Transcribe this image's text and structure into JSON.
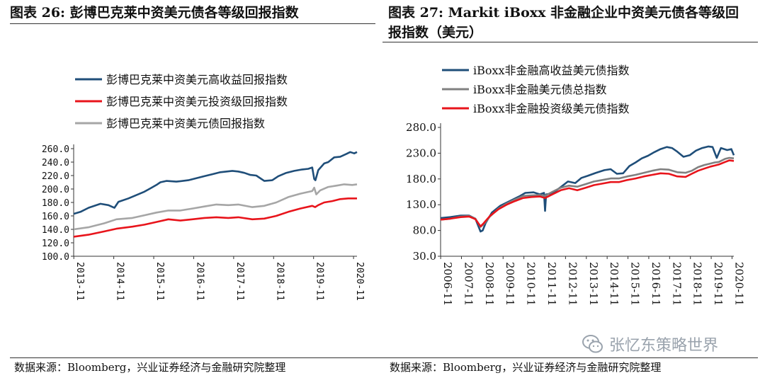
{
  "titles": {
    "left": "图表 26:  彭博巴克莱中资美元债各等级回报指数",
    "right": "图表 27:  Markit iBoxx 非金融企业中资美元债各等级回报指数（美元）"
  },
  "sources": {
    "left": "数据来源：Bloomberg，兴业证券经济与金融研究院整理",
    "right": "数据来源：Bloomberg，兴业证券经济与金融研究院整理"
  },
  "watermark": {
    "text": "张忆东策略世界",
    "icon": "wechat-icon"
  },
  "colors": {
    "navy": "#1f4e79",
    "red": "#e8141b",
    "gray": "#a6a6a6"
  },
  "chart_data": [
    {
      "type": "line",
      "title": "",
      "xlabel": "",
      "ylabel": "",
      "x_ticks": [
        "2013-11",
        "2014-11",
        "2015-11",
        "2016-11",
        "2017-11",
        "2018-11",
        "2019-11",
        "2020-11"
      ],
      "y_ticks": [
        "100.0",
        "120.0",
        "140.0",
        "160.0",
        "180.0",
        "200.0",
        "220.0",
        "240.0",
        "260.0"
      ],
      "ylim": [
        100,
        260
      ],
      "xlim": [
        2013.83,
        2020.92
      ],
      "grid": false,
      "legend_position": "top-left",
      "series": [
        {
          "name": "彭博巴克莱中资美元高收益回报指数",
          "color": "#1f4e79",
          "x": [
            2013.83,
            2014.0,
            2014.2,
            2014.5,
            2014.7,
            2014.85,
            2014.95,
            2015.2,
            2015.4,
            2015.6,
            2015.75,
            2015.9,
            2016.0,
            2016.15,
            2016.4,
            2016.7,
            2016.9,
            2017.1,
            2017.3,
            2017.5,
            2017.8,
            2017.95,
            2018.1,
            2018.25,
            2018.4,
            2018.6,
            2018.8,
            2018.95,
            2019.15,
            2019.35,
            2019.55,
            2019.7,
            2019.8,
            2019.85,
            2019.88,
            2019.95,
            2020.1,
            2020.2,
            2020.35,
            2020.5,
            2020.65,
            2020.75,
            2020.85,
            2020.92
          ],
          "values": [
            163,
            166,
            172,
            178,
            176,
            172,
            181,
            186,
            191,
            196,
            201,
            206,
            210,
            212,
            211,
            213,
            216,
            219,
            222,
            225,
            227,
            226,
            224,
            221,
            220,
            212,
            213,
            219,
            224,
            227,
            229,
            230,
            232,
            215,
            213,
            228,
            238,
            240,
            247,
            248,
            252,
            255,
            253,
            255
          ]
        },
        {
          "name": "彭博巴克莱中资美元投资级回报指数",
          "color": "#e8141b",
          "x": [
            2013.83,
            2014.2,
            2014.6,
            2014.9,
            2015.3,
            2015.6,
            2015.9,
            2016.2,
            2016.5,
            2016.8,
            2017.1,
            2017.4,
            2017.7,
            2017.95,
            2018.3,
            2018.6,
            2018.9,
            2019.2,
            2019.5,
            2019.8,
            2019.87,
            2019.95,
            2020.1,
            2020.3,
            2020.5,
            2020.7,
            2020.92
          ],
          "values": [
            129,
            132,
            137,
            141,
            144,
            147,
            151,
            155,
            153,
            155,
            157,
            158,
            157,
            158,
            155,
            156,
            160,
            166,
            171,
            175,
            173,
            176,
            180,
            182,
            185,
            186,
            186
          ]
        },
        {
          "name": "彭博巴克莱中资美元债回报指数",
          "color": "#a6a6a6",
          "x": [
            2013.83,
            2014.2,
            2014.6,
            2014.9,
            2015.3,
            2015.6,
            2015.9,
            2016.2,
            2016.5,
            2016.8,
            2017.1,
            2017.4,
            2017.7,
            2017.95,
            2018.3,
            2018.6,
            2018.9,
            2019.2,
            2019.5,
            2019.8,
            2019.85,
            2019.9,
            2020.0,
            2020.2,
            2020.4,
            2020.6,
            2020.8,
            2020.92
          ],
          "values": [
            140,
            143,
            149,
            155,
            157,
            161,
            165,
            168,
            168,
            171,
            174,
            177,
            176,
            177,
            173,
            175,
            180,
            188,
            193,
            197,
            202,
            192,
            198,
            203,
            205,
            207,
            206,
            207
          ]
        }
      ]
    },
    {
      "type": "line",
      "title": "",
      "xlabel": "",
      "ylabel": "",
      "x_ticks": [
        "2006-11",
        "2007-11",
        "2008-11",
        "2009-11",
        "2010-11",
        "2011-11",
        "2012-11",
        "2013-11",
        "2014-11",
        "2015-11",
        "2016-11",
        "2017-11",
        "2018-11",
        "2019-11",
        "2020-11"
      ],
      "y_ticks": [
        "30.0",
        "80.0",
        "130.0",
        "180.0",
        "230.0",
        "280.0"
      ],
      "ylim": [
        30,
        280
      ],
      "xlim": [
        2006.83,
        2020.92
      ],
      "grid": false,
      "legend_position": "top-left",
      "series": [
        {
          "name": "iBoxx非金融高收益美元债指数",
          "color": "#1f4e79",
          "x": [
            2006.83,
            2007.3,
            2007.8,
            2008.2,
            2008.5,
            2008.75,
            2008.85,
            2009.0,
            2009.3,
            2009.7,
            2010.2,
            2010.6,
            2010.9,
            2011.3,
            2011.6,
            2011.8,
            2011.85,
            2011.9,
            2012.2,
            2012.6,
            2012.95,
            2013.3,
            2013.6,
            2013.9,
            2014.3,
            2014.7,
            2015.0,
            2015.3,
            2015.6,
            2015.9,
            2016.2,
            2016.5,
            2016.8,
            2017.1,
            2017.4,
            2017.7,
            2017.95,
            2018.2,
            2018.5,
            2018.8,
            2019.1,
            2019.4,
            2019.7,
            2019.9,
            2020.1,
            2020.3,
            2020.6,
            2020.8,
            2020.92
          ],
          "values": [
            104,
            106,
            109,
            109,
            103,
            78,
            80,
            95,
            115,
            128,
            138,
            146,
            153,
            154,
            150,
            153,
            118,
            150,
            152,
            164,
            175,
            172,
            182,
            186,
            192,
            197,
            199,
            190,
            191,
            205,
            212,
            220,
            225,
            232,
            238,
            242,
            240,
            233,
            223,
            226,
            235,
            240,
            243,
            242,
            221,
            240,
            236,
            238,
            226
          ]
        },
        {
          "name": "iBoxx非金融美元债总指数",
          "color": "#808080",
          "x": [
            2006.83,
            2007.3,
            2007.8,
            2008.2,
            2008.5,
            2008.75,
            2008.9,
            2009.2,
            2009.6,
            2010.0,
            2010.4,
            2010.8,
            2011.2,
            2011.6,
            2011.85,
            2012.2,
            2012.6,
            2013.0,
            2013.4,
            2013.8,
            2014.2,
            2014.6,
            2015.0,
            2015.4,
            2015.8,
            2016.2,
            2016.6,
            2017.0,
            2017.4,
            2017.8,
            2018.2,
            2018.6,
            2018.9,
            2019.2,
            2019.5,
            2019.8,
            2020.0,
            2020.2,
            2020.5,
            2020.7,
            2020.92
          ],
          "values": [
            101,
            103,
            107,
            108,
            103,
            87,
            92,
            107,
            122,
            132,
            140,
            147,
            148,
            149,
            147,
            155,
            163,
            167,
            165,
            170,
            175,
            178,
            181,
            181,
            185,
            188,
            192,
            196,
            199,
            198,
            193,
            192,
            196,
            203,
            207,
            210,
            212,
            213,
            219,
            221,
            220
          ]
        },
        {
          "name": "iBoxx非金融投资级美元债指数",
          "color": "#e8141b",
          "x": [
            2006.83,
            2007.3,
            2007.8,
            2008.2,
            2008.5,
            2008.75,
            2008.9,
            2009.2,
            2009.6,
            2010.0,
            2010.4,
            2010.8,
            2011.2,
            2011.6,
            2011.85,
            2012.2,
            2012.6,
            2013.0,
            2013.4,
            2013.8,
            2014.2,
            2014.6,
            2015.0,
            2015.4,
            2015.8,
            2016.2,
            2016.6,
            2017.0,
            2017.4,
            2017.8,
            2018.2,
            2018.6,
            2018.9,
            2019.2,
            2019.5,
            2019.8,
            2020.0,
            2020.2,
            2020.5,
            2020.7,
            2020.92
          ],
          "values": [
            101,
            103,
            106,
            107,
            102,
            88,
            94,
            108,
            121,
            130,
            137,
            143,
            145,
            146,
            143,
            150,
            158,
            162,
            158,
            163,
            168,
            171,
            174,
            174,
            178,
            181,
            185,
            188,
            191,
            190,
            185,
            184,
            190,
            196,
            200,
            204,
            206,
            208,
            213,
            216,
            215
          ]
        }
      ]
    }
  ]
}
